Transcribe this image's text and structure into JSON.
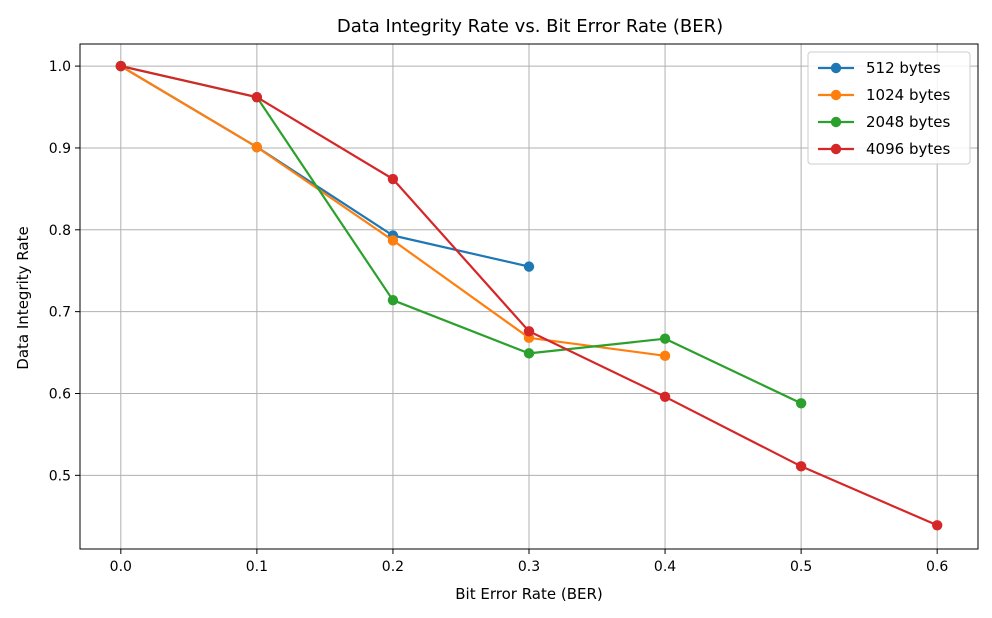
{
  "chart_data": {
    "type": "line",
    "title": "Data Integrity Rate vs. Bit Error Rate (BER)",
    "xlabel": "Bit Error Rate (BER)",
    "ylabel": "Data Integrity Rate",
    "xlim": [
      -0.03,
      0.63
    ],
    "ylim": [
      0.41,
      1.027
    ],
    "xticks": [
      "0.0",
      "0.1",
      "0.2",
      "0.3",
      "0.4",
      "0.5",
      "0.6"
    ],
    "yticks": [
      "0.5",
      "0.6",
      "0.7",
      "0.8",
      "0.9",
      "1.0"
    ],
    "grid": true,
    "legend_position": "top-right",
    "series": [
      {
        "name": "512 bytes",
        "color": "#1f77b4",
        "x": [
          0.0,
          0.1,
          0.2,
          0.3
        ],
        "y": [
          1.0,
          0.901,
          0.793,
          0.755
        ]
      },
      {
        "name": "1024 bytes",
        "color": "#ff7f0e",
        "x": [
          0.0,
          0.1,
          0.2,
          0.3,
          0.4
        ],
        "y": [
          1.0,
          0.901,
          0.787,
          0.668,
          0.646
        ]
      },
      {
        "name": "2048 bytes",
        "color": "#2ca02c",
        "x": [
          0.0,
          0.1,
          0.2,
          0.3,
          0.4,
          0.5
        ],
        "y": [
          1.0,
          0.962,
          0.714,
          0.649,
          0.667,
          0.588
        ]
      },
      {
        "name": "4096 bytes",
        "color": "#d62728",
        "x": [
          0.0,
          0.1,
          0.2,
          0.3,
          0.4,
          0.5,
          0.6
        ],
        "y": [
          1.0,
          0.962,
          0.862,
          0.676,
          0.596,
          0.511,
          0.439
        ]
      }
    ]
  }
}
